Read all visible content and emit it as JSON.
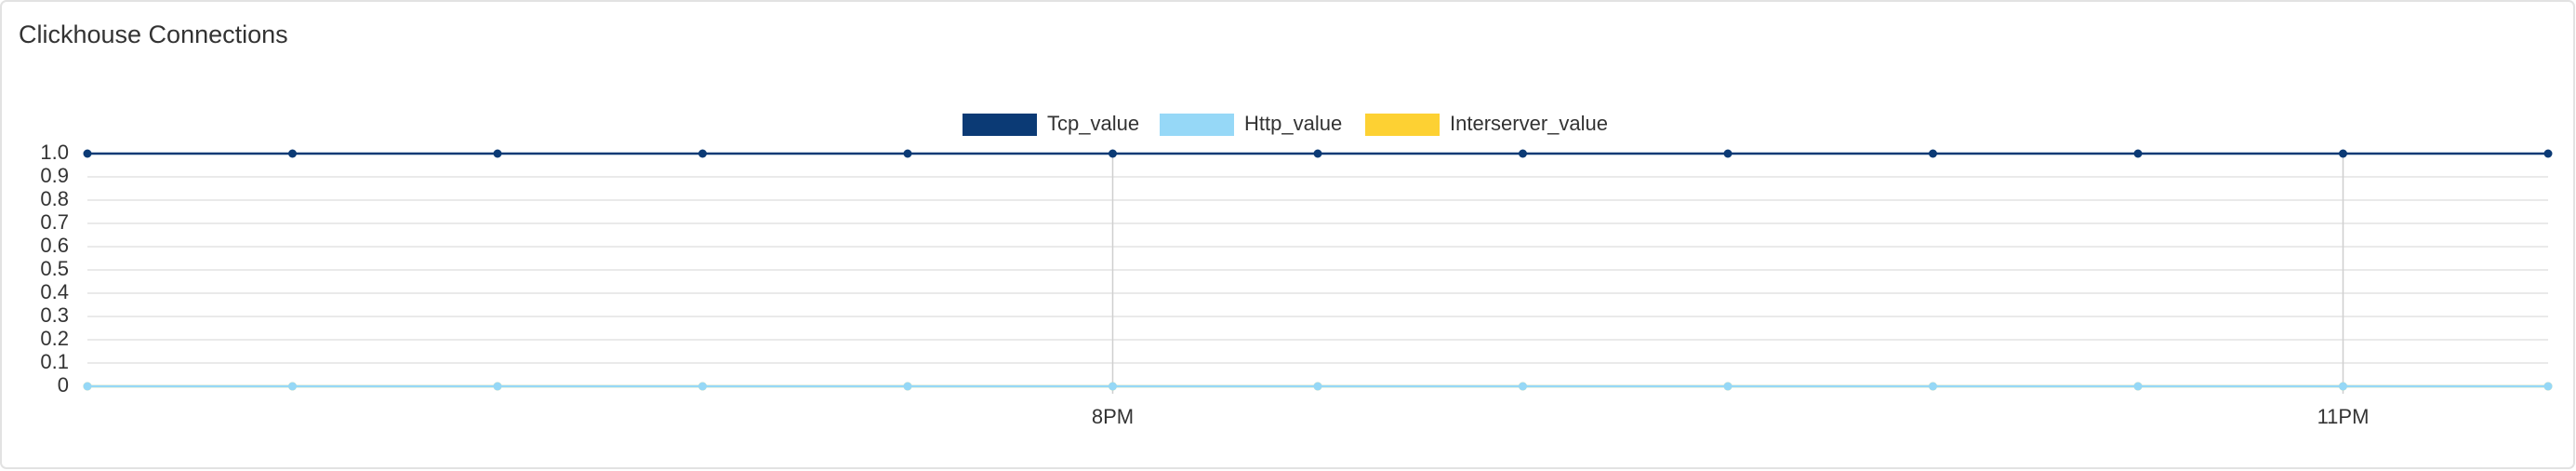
{
  "chart_data": {
    "type": "line",
    "title": "Clickhouse Connections",
    "categories": [
      null,
      null,
      null,
      null,
      null,
      "8PM",
      null,
      null,
      null,
      null,
      null,
      "11PM",
      null
    ],
    "series": [
      {
        "name": "Tcp_value",
        "color": "#0b3a75",
        "values": [
          1,
          1,
          1,
          1,
          1,
          1,
          1,
          1,
          1,
          1,
          1,
          1,
          1
        ]
      },
      {
        "name": "Http_value",
        "color": "#96d8f7",
        "values": [
          0,
          0,
          0,
          0,
          0,
          0,
          0,
          0,
          0,
          0,
          0,
          0,
          0
        ]
      },
      {
        "name": "Interserver_value",
        "color": "#fdd133",
        "values": [
          0,
          0,
          0,
          0,
          0,
          0,
          0,
          0,
          0,
          0,
          0,
          0,
          0
        ]
      }
    ],
    "ylim": [
      0,
      1
    ],
    "yticks": [
      0,
      0.1,
      0.2,
      0.3,
      0.4,
      0.5,
      0.6,
      0.7,
      0.8,
      0.9,
      {
        "value": 1,
        "label": "1.0"
      }
    ],
    "grid": true,
    "legend": "top"
  }
}
